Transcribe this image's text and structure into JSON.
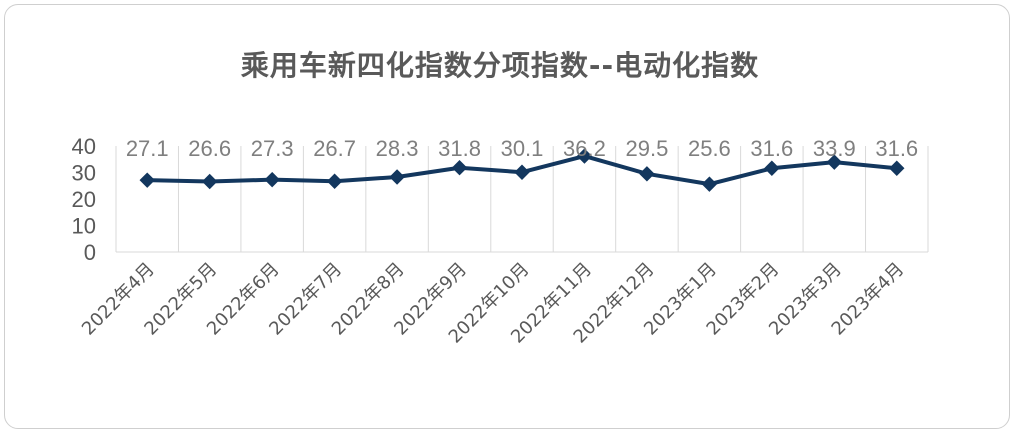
{
  "chart_data": {
    "type": "line",
    "title": "乘用车新四化指数分项指数--电动化指数",
    "xlabel": "",
    "ylabel": "",
    "categories": [
      "2022年4月",
      "2022年5月",
      "2022年6月",
      "2022年7月",
      "2022年8月",
      "2022年9月",
      "2022年10月",
      "2022年11月",
      "2022年12月",
      "2023年1月",
      "2023年2月",
      "2023年3月",
      "2023年4月"
    ],
    "series": [
      {
        "values": [
          27.1,
          26.6,
          27.3,
          26.7,
          28.3,
          31.8,
          30.1,
          36.2,
          29.5,
          25.6,
          31.6,
          33.9,
          31.6
        ]
      }
    ],
    "yticks": [
      "0",
      "10",
      "20",
      "30",
      "40"
    ],
    "ylim": [
      0,
      40
    ],
    "grid": "vertical",
    "legend": "none",
    "colors": {
      "line": "#13375e",
      "marker": "#13375e",
      "data_label": "#7f7f7f",
      "tick_label": "#595959",
      "title": "#595959",
      "grid": "#d9d9d9"
    }
  }
}
